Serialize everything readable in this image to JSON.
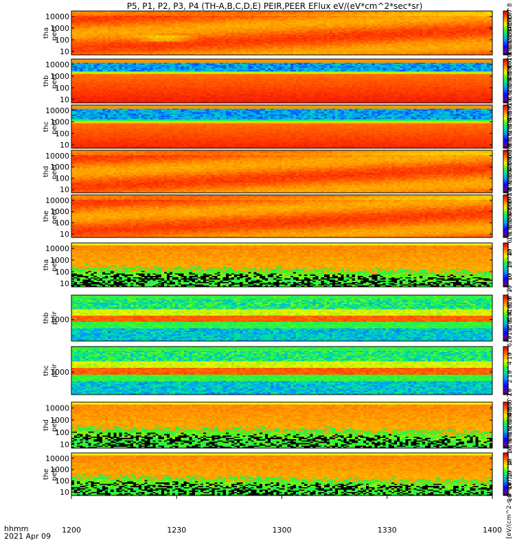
{
  "chart_data": {
    "type": "heatmap",
    "title": "P5, P1, P2, P3, P4 (TH-A,B,C,D,E) PEIR,PEER EFlux eV/(eV*cm^2*sec*sr)",
    "date_label": "2021 Apr 09",
    "time_label": "hhmm",
    "x": {
      "range": [
        "1200",
        "1400"
      ],
      "ticks": [
        "1200",
        "1230",
        "1300",
        "1330",
        "1400"
      ]
    },
    "colorbar_unit": "[eV/(cm^2-s-sr-eV)]",
    "panels": [
      {
        "name": "tha peer",
        "label_line1": "tha",
        "label_line2": "peer",
        "yscale": "log",
        "ylim": [
          5,
          30000
        ],
        "yticks": [
          "10",
          "100",
          "1000",
          "10000"
        ],
        "colorbar_ticks": [
          "10^8",
          "10^7",
          "10^6",
          "10^5",
          "10^4",
          "10^3",
          "10^2",
          "10^1"
        ],
        "color_log_range": [
          1,
          8.5
        ]
      },
      {
        "name": "thb peer",
        "label_line1": "thb",
        "label_line2": "peer",
        "yscale": "log",
        "ylim": [
          5,
          30000
        ],
        "yticks": [
          "10",
          "100",
          "1000",
          "10000"
        ],
        "colorbar_ticks": [
          "10^8",
          "10^7",
          "10^6",
          "10^5",
          "10^4",
          "10^3",
          "10^2"
        ],
        "color_log_range": [
          1.5,
          8.5
        ]
      },
      {
        "name": "thc peer",
        "label_line1": "thc",
        "label_line2": "peer",
        "yscale": "log",
        "ylim": [
          5,
          30000
        ],
        "yticks": [
          "10",
          "100",
          "1000",
          "10000"
        ],
        "colorbar_ticks": [
          "10^7",
          "10^6",
          "10^5",
          "10^4",
          "10^3",
          "10^2",
          "10^1"
        ],
        "color_log_range": [
          0.8,
          7.5
        ]
      },
      {
        "name": "thd peer",
        "label_line1": "thd",
        "label_line2": "peer",
        "yscale": "log",
        "ylim": [
          5,
          30000
        ],
        "yticks": [
          "10",
          "100",
          "1000",
          "10000"
        ],
        "colorbar_ticks": [
          "10^8",
          "10^7",
          "10^6",
          "10^5",
          "10^4",
          "10^3",
          "10^2"
        ],
        "color_log_range": [
          1.5,
          8.5
        ]
      },
      {
        "name": "the peer",
        "label_line1": "the",
        "label_line2": "peer",
        "yscale": "log",
        "ylim": [
          5,
          30000
        ],
        "yticks": [
          "10",
          "100",
          "1000",
          "10000"
        ],
        "colorbar_ticks": [
          "10^8",
          "10^7",
          "10^6",
          "10^5",
          "10^4",
          "10^3",
          "10^2"
        ],
        "color_log_range": [
          1.5,
          8.5
        ]
      },
      {
        "name": "tha peir",
        "label_line1": "tha",
        "label_line2": "peir",
        "yscale": "log",
        "ylim": [
          5,
          30000
        ],
        "yticks": [
          "10",
          "100",
          "1000",
          "10000"
        ],
        "colorbar_ticks": [
          "10^6",
          "10^4",
          "10^2",
          "10^0"
        ],
        "color_log_range": [
          0,
          7.2
        ]
      },
      {
        "name": "thb peir",
        "label_line1": "thb",
        "label_line2": "peir",
        "yscale": "log",
        "ylim": [
          50,
          30000
        ],
        "yticks": [
          "1000"
        ],
        "colorbar_ticks": [
          "10^7",
          "10^6",
          "10^5",
          "10^4",
          "10^3",
          "10^2"
        ],
        "color_log_range": [
          1.5,
          7.5
        ]
      },
      {
        "name": "thc peir",
        "label_line1": "thc",
        "label_line2": "peir",
        "yscale": "log",
        "ylim": [
          50,
          30000
        ],
        "yticks": [
          "1000"
        ],
        "colorbar_ticks": [
          "10^6",
          "10^4",
          "10^2"
        ],
        "color_log_range": [
          1.5,
          6.8
        ]
      },
      {
        "name": "thd peir",
        "label_line1": "thd",
        "label_line2": "peir",
        "yscale": "log",
        "ylim": [
          5,
          30000
        ],
        "yticks": [
          "10",
          "100",
          "1000",
          "10000"
        ],
        "colorbar_ticks": [
          "10^7",
          "10^6",
          "10^5",
          "10^4",
          "10^3",
          "10^2",
          "10^1",
          "10^0"
        ],
        "color_log_range": [
          0,
          7.3
        ]
      },
      {
        "name": "the peir",
        "label_line1": "the",
        "label_line2": "peir",
        "yscale": "log",
        "ylim": [
          5,
          30000
        ],
        "yticks": [
          "10",
          "100",
          "1000",
          "10000"
        ],
        "colorbar_ticks": [
          "10^6",
          "10^4",
          "10^2",
          "10^0"
        ],
        "color_log_range": [
          0,
          7.2
        ]
      }
    ]
  }
}
